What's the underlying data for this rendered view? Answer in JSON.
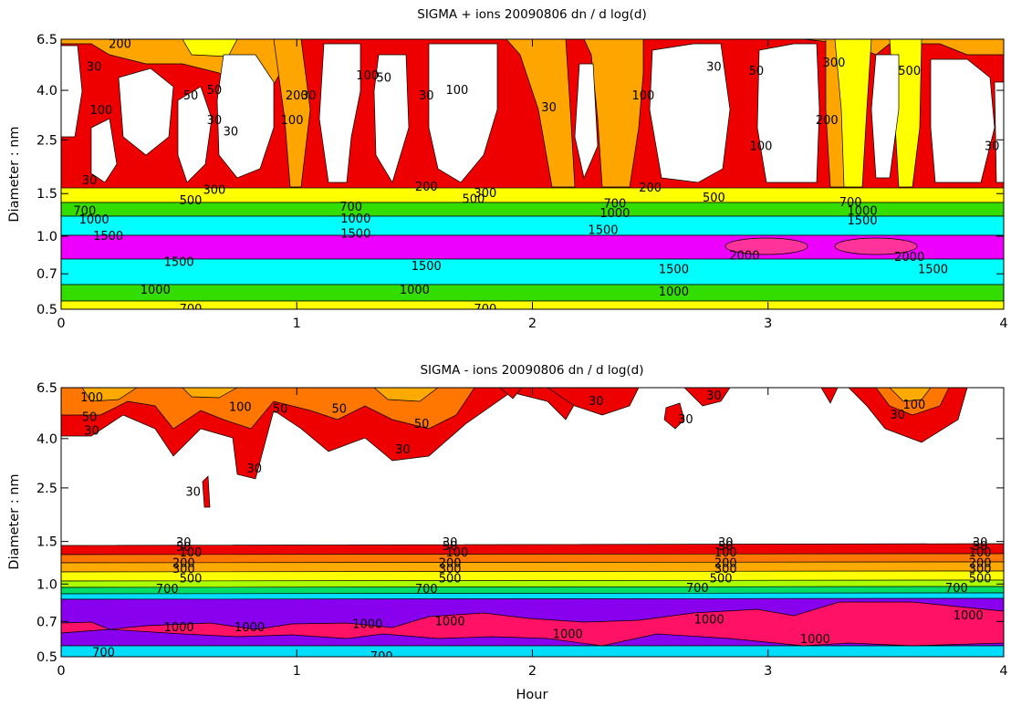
{
  "chart_data": [
    {
      "type": "heatmap",
      "subtype": "filled-contour",
      "title": "SIGMA + ions 20090806 dn / d log(d)",
      "xlabel": "",
      "ylabel": "Diameter : nm",
      "xlim": [
        0,
        4
      ],
      "x_ticks": [
        "0",
        "1",
        "2",
        "3",
        "4"
      ],
      "y_ticks": [
        "0.5",
        "0.7",
        "1.0",
        "1.5",
        "2.5",
        "4.0",
        "6.5"
      ],
      "levels": [
        30,
        50,
        100,
        200,
        300,
        500,
        700,
        1000,
        1500,
        2000
      ],
      "bands": [
        {
          "color": "#ffff00",
          "y": [
            0.5,
            0.53
          ]
        },
        {
          "color": "#33dd00",
          "y": [
            0.53,
            0.62
          ]
        },
        {
          "color": "#00ffff",
          "y": [
            0.62,
            0.82
          ]
        },
        {
          "color": "#ee00ff",
          "y": [
            0.82,
            1.06
          ]
        },
        {
          "color": "#00ffff",
          "y": [
            1.06,
            1.2
          ]
        },
        {
          "color": "#33dd00",
          "y": [
            1.2,
            1.3
          ]
        },
        {
          "color": "#ffff00",
          "y": [
            1.3,
            1.52
          ]
        }
      ],
      "labels": [
        {
          "text": "200",
          "x": 0.25,
          "y": 6.2
        },
        {
          "text": "30",
          "x": 0.14,
          "y": 5.0
        },
        {
          "text": "100",
          "x": 0.17,
          "y": 3.3
        },
        {
          "text": "50",
          "x": 0.65,
          "y": 4.0
        },
        {
          "text": "50",
          "x": 0.55,
          "y": 3.8
        },
        {
          "text": "30",
          "x": 0.65,
          "y": 3.0
        },
        {
          "text": "30",
          "x": 0.72,
          "y": 2.7
        },
        {
          "text": "200",
          "x": 1.0,
          "y": 3.8
        },
        {
          "text": "100",
          "x": 0.98,
          "y": 3.0
        },
        {
          "text": "30",
          "x": 1.05,
          "y": 3.8
        },
        {
          "text": "100",
          "x": 1.3,
          "y": 4.6
        },
        {
          "text": "50",
          "x": 1.37,
          "y": 4.5
        },
        {
          "text": "30",
          "x": 1.55,
          "y": 3.8
        },
        {
          "text": "100",
          "x": 1.68,
          "y": 4.0
        },
        {
          "text": "30",
          "x": 2.07,
          "y": 3.4
        },
        {
          "text": "100",
          "x": 2.47,
          "y": 3.8
        },
        {
          "text": "30",
          "x": 2.77,
          "y": 5.0
        },
        {
          "text": "50",
          "x": 2.95,
          "y": 4.8
        },
        {
          "text": "100",
          "x": 2.97,
          "y": 2.35
        },
        {
          "text": "300",
          "x": 3.28,
          "y": 5.2
        },
        {
          "text": "200",
          "x": 3.25,
          "y": 3.0
        },
        {
          "text": "500",
          "x": 3.6,
          "y": 4.8
        },
        {
          "text": "30",
          "x": 3.95,
          "y": 2.35
        },
        {
          "text": "30",
          "x": 0.12,
          "y": 1.7
        },
        {
          "text": "300",
          "x": 0.65,
          "y": 1.55
        },
        {
          "text": "500",
          "x": 0.55,
          "y": 1.4
        },
        {
          "text": "200",
          "x": 1.55,
          "y": 1.6
        },
        {
          "text": "300",
          "x": 1.8,
          "y": 1.5
        },
        {
          "text": "500",
          "x": 1.75,
          "y": 1.42
        },
        {
          "text": "200",
          "x": 2.5,
          "y": 1.58
        },
        {
          "text": "500",
          "x": 2.77,
          "y": 1.44
        },
        {
          "text": "700",
          "x": 0.1,
          "y": 1.27
        },
        {
          "text": "1000",
          "x": 0.14,
          "y": 1.17
        },
        {
          "text": "700",
          "x": 1.23,
          "y": 1.32
        },
        {
          "text": "1000",
          "x": 1.25,
          "y": 1.18
        },
        {
          "text": "700",
          "x": 2.35,
          "y": 1.36
        },
        {
          "text": "1000",
          "x": 2.35,
          "y": 1.24
        },
        {
          "text": "700",
          "x": 3.35,
          "y": 1.38
        },
        {
          "text": "1000",
          "x": 3.4,
          "y": 1.27
        },
        {
          "text": "1500",
          "x": 0.2,
          "y": 1.0
        },
        {
          "text": "1500",
          "x": 1.25,
          "y": 1.02
        },
        {
          "text": "1500",
          "x": 2.3,
          "y": 1.06
        },
        {
          "text": "1500",
          "x": 3.4,
          "y": 1.16
        },
        {
          "text": "1500",
          "x": 0.5,
          "y": 0.78
        },
        {
          "text": "1500",
          "x": 1.55,
          "y": 0.75
        },
        {
          "text": "1500",
          "x": 2.6,
          "y": 0.73
        },
        {
          "text": "2000",
          "x": 2.9,
          "y": 0.83
        },
        {
          "text": "2000",
          "x": 3.6,
          "y": 0.82
        },
        {
          "text": "1500",
          "x": 3.7,
          "y": 0.73
        },
        {
          "text": "1000",
          "x": 0.4,
          "y": 0.6
        },
        {
          "text": "700",
          "x": 0.55,
          "y": 0.5
        },
        {
          "text": "1000",
          "x": 1.5,
          "y": 0.6
        },
        {
          "text": "700",
          "x": 1.8,
          "y": 0.5
        },
        {
          "text": "1000",
          "x": 2.6,
          "y": 0.59
        }
      ]
    },
    {
      "type": "heatmap",
      "subtype": "filled-contour",
      "title": "SIGMA - ions 20090806 dn / d log(d)",
      "xlabel": "Hour",
      "ylabel": "Diameter : nm",
      "xlim": [
        0,
        4
      ],
      "x_ticks": [
        "0",
        "1",
        "2",
        "3",
        "4"
      ],
      "y_ticks": [
        "0.5",
        "0.7",
        "1.0",
        "1.5",
        "2.5",
        "4.0",
        "6.5"
      ],
      "levels": [
        30,
        50,
        100,
        200,
        300,
        500,
        700,
        1000
      ],
      "bands": [
        {
          "color": "#ee0000",
          "y": [
            1.43,
            1.52
          ]
        },
        {
          "color": "#ff7700",
          "y": [
            1.37,
            1.43
          ]
        },
        {
          "color": "#ffaa00",
          "y": [
            1.28,
            1.37
          ]
        },
        {
          "color": "#ffff00",
          "y": [
            1.18,
            1.28
          ]
        },
        {
          "color": "#aaff00",
          "y": [
            1.1,
            1.18
          ]
        },
        {
          "color": "#00dd66",
          "y": [
            1.02,
            1.1
          ]
        },
        {
          "color": "#00ddff",
          "y": [
            0.94,
            1.02
          ]
        },
        {
          "color": "#8800ee",
          "y": [
            0.58,
            0.94
          ]
        },
        {
          "color": "#00ddff",
          "y": [
            0.5,
            0.58
          ]
        }
      ],
      "labels": [
        {
          "text": "100",
          "x": 0.13,
          "y": 5.9
        },
        {
          "text": "50",
          "x": 0.12,
          "y": 4.9
        },
        {
          "text": "30",
          "x": 0.13,
          "y": 4.3
        },
        {
          "text": "100",
          "x": 0.76,
          "y": 5.4
        },
        {
          "text": "50",
          "x": 0.93,
          "y": 5.3
        },
        {
          "text": "50",
          "x": 1.18,
          "y": 5.3
        },
        {
          "text": "50",
          "x": 1.53,
          "y": 4.6
        },
        {
          "text": "30",
          "x": 1.45,
          "y": 3.6
        },
        {
          "text": "30",
          "x": 0.82,
          "y": 3.0
        },
        {
          "text": "30",
          "x": 0.56,
          "y": 2.4
        },
        {
          "text": "30",
          "x": 2.27,
          "y": 5.7
        },
        {
          "text": "30",
          "x": 2.77,
          "y": 6.0
        },
        {
          "text": "30",
          "x": 2.65,
          "y": 4.8
        },
        {
          "text": "100",
          "x": 3.62,
          "y": 5.5
        },
        {
          "text": "30",
          "x": 3.55,
          "y": 5.0
        },
        {
          "text": "30",
          "x": 0.52,
          "y": 1.48
        },
        {
          "text": "50",
          "x": 0.52,
          "y": 1.42
        },
        {
          "text": "100",
          "x": 0.55,
          "y": 1.35
        },
        {
          "text": "200",
          "x": 0.52,
          "y": 1.22
        },
        {
          "text": "300",
          "x": 0.52,
          "y": 1.15
        },
        {
          "text": "500",
          "x": 0.55,
          "y": 1.05
        },
        {
          "text": "700",
          "x": 0.45,
          "y": 0.95
        },
        {
          "text": "30",
          "x": 1.65,
          "y": 1.48
        },
        {
          "text": "50",
          "x": 1.65,
          "y": 1.43
        },
        {
          "text": "100",
          "x": 1.68,
          "y": 1.35
        },
        {
          "text": "200",
          "x": 1.65,
          "y": 1.22
        },
        {
          "text": "300",
          "x": 1.65,
          "y": 1.15
        },
        {
          "text": "500",
          "x": 1.65,
          "y": 1.05
        },
        {
          "text": "700",
          "x": 1.55,
          "y": 0.95
        },
        {
          "text": "30",
          "x": 2.82,
          "y": 1.48
        },
        {
          "text": "50",
          "x": 2.82,
          "y": 1.43
        },
        {
          "text": "100",
          "x": 2.82,
          "y": 1.35
        },
        {
          "text": "200",
          "x": 2.82,
          "y": 1.22
        },
        {
          "text": "300",
          "x": 2.82,
          "y": 1.15
        },
        {
          "text": "500",
          "x": 2.8,
          "y": 1.05
        },
        {
          "text": "700",
          "x": 2.7,
          "y": 0.96
        },
        {
          "text": "30",
          "x": 3.9,
          "y": 1.48
        },
        {
          "text": "50",
          "x": 3.9,
          "y": 1.43
        },
        {
          "text": "100",
          "x": 3.9,
          "y": 1.35
        },
        {
          "text": "200",
          "x": 3.9,
          "y": 1.22
        },
        {
          "text": "300",
          "x": 3.9,
          "y": 1.15
        },
        {
          "text": "500",
          "x": 3.9,
          "y": 1.05
        },
        {
          "text": "700",
          "x": 3.8,
          "y": 0.96
        },
        {
          "text": "1000",
          "x": 0.5,
          "y": 0.66
        },
        {
          "text": "1000",
          "x": 0.8,
          "y": 0.66
        },
        {
          "text": "1000",
          "x": 1.3,
          "y": 0.68
        },
        {
          "text": "1000",
          "x": 1.65,
          "y": 0.7
        },
        {
          "text": "1000",
          "x": 2.15,
          "y": 0.62
        },
        {
          "text": "1000",
          "x": 2.75,
          "y": 0.71
        },
        {
          "text": "1000",
          "x": 3.2,
          "y": 0.59
        },
        {
          "text": "1000",
          "x": 3.85,
          "y": 0.74
        },
        {
          "text": "700",
          "x": 0.18,
          "y": 0.52
        },
        {
          "text": "700",
          "x": 1.36,
          "y": 0.5
        }
      ]
    }
  ]
}
